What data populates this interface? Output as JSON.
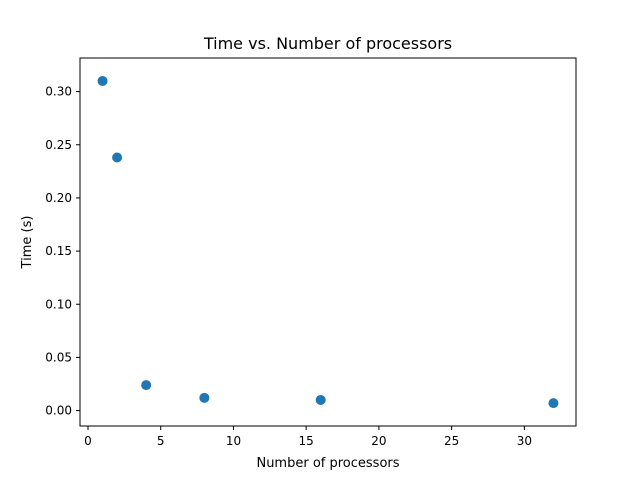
{
  "chart_data": {
    "type": "scatter",
    "title": "Time vs. Number of processors",
    "xlabel": "Number of processors",
    "ylabel": "Time (s)",
    "xlim": [
      -0.55,
      33.55
    ],
    "ylim": [
      -0.0145,
      0.3316
    ],
    "xticks": [
      0,
      5,
      10,
      15,
      20,
      25,
      30
    ],
    "xtick_labels": [
      "0",
      "5",
      "10",
      "15",
      "20",
      "25",
      "30"
    ],
    "yticks": [
      0.0,
      0.05,
      0.1,
      0.15,
      0.2,
      0.25,
      0.3
    ],
    "ytick_labels": [
      "0.00",
      "0.05",
      "0.10",
      "0.15",
      "0.20",
      "0.25",
      "0.30"
    ],
    "grid": false,
    "marker_color": "#1f77b4",
    "series": [
      {
        "x": [
          1,
          2,
          4,
          8,
          16,
          32
        ],
        "y": [
          0.31,
          0.238,
          0.024,
          0.012,
          0.01,
          0.007
        ]
      }
    ]
  }
}
